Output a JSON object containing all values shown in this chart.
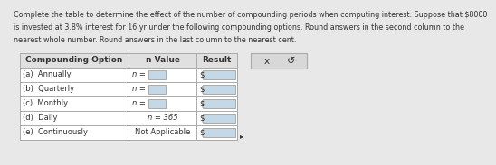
{
  "title_line1": "Complete the table to determine the effect of the number of compounding periods when computing interest. Suppose that $8000",
  "title_line2": "is invested at 3.8% interest for 16 yr under the following compounding options. Round answers in the second column to the",
  "title_line3": "nearest whole number. Round answers in the last column to the nearest cent.",
  "col_headers": [
    "Compounding Option",
    "n Value",
    "Result"
  ],
  "rows": [
    [
      "(a)  Annually",
      "n =",
      true
    ],
    [
      "(b)  Quarterly",
      "n =",
      true
    ],
    [
      "(c)  Monthly",
      "n =",
      true
    ],
    [
      "(d)  Daily",
      "n = 365",
      false
    ],
    [
      "(e)  Continuously",
      "Not Applicable",
      false
    ]
  ],
  "bg_color": "#e8e8e8",
  "table_bg": "#ffffff",
  "header_bg": "#e0e0e0",
  "input_box_color": "#c5d8e8",
  "text_color": "#333333",
  "border_color": "#aaaaaa",
  "button_bg": "#d8d8d8",
  "button_x": "x",
  "button_arrow": "↺",
  "title_fontsize": 5.8,
  "cell_fontsize": 6.0,
  "header_fontsize": 6.5
}
